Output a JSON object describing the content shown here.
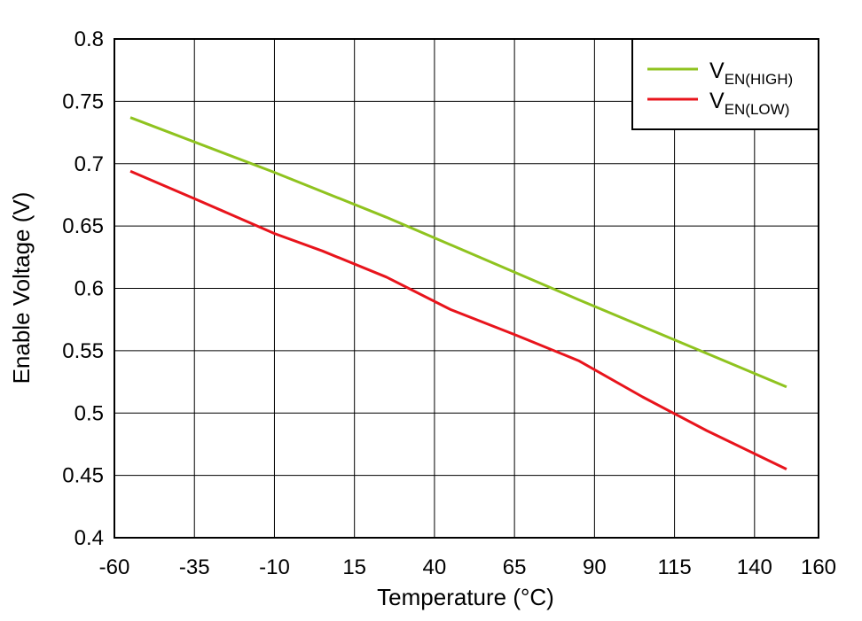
{
  "chart_data": {
    "type": "line",
    "title": "",
    "xlabel": "Temperature (°C)",
    "ylabel": "Enable Voltage (V)",
    "xlim": [
      -60,
      160
    ],
    "ylim": [
      0.4,
      0.8
    ],
    "xticks": [
      -60,
      -35,
      -10,
      15,
      40,
      65,
      90,
      115,
      140,
      160
    ],
    "yticks": [
      0.4,
      0.45,
      0.5,
      0.55,
      0.6,
      0.65,
      0.7,
      0.75,
      0.8
    ],
    "xtick_labels": [
      "-60",
      "-35",
      "-10",
      "15",
      "40",
      "65",
      "90",
      "115",
      "140",
      "160"
    ],
    "ytick_labels": [
      "0.4",
      "0.45",
      "0.5",
      "0.55",
      "0.6",
      "0.65",
      "0.7",
      "0.75",
      "0.8"
    ],
    "grid": true,
    "legend": {
      "placement": "top-right",
      "entries": [
        {
          "main": "V",
          "sub": "EN(HIGH)"
        },
        {
          "main": "V",
          "sub": "EN(LOW)"
        }
      ]
    },
    "series": [
      {
        "name": "VEN(HIGH)",
        "color": "#8fc31f",
        "x": [
          -55,
          -10,
          25,
          85,
          150
        ],
        "y": [
          0.737,
          0.693,
          0.657,
          0.591,
          0.521
        ]
      },
      {
        "name": "VEN(LOW)",
        "color": "#e8141c",
        "x": [
          -55,
          -35,
          -10,
          5,
          25,
          45,
          65,
          85,
          105,
          125,
          150
        ],
        "y": [
          0.694,
          0.672,
          0.644,
          0.63,
          0.609,
          0.583,
          0.563,
          0.542,
          0.513,
          0.486,
          0.455
        ]
      }
    ]
  }
}
